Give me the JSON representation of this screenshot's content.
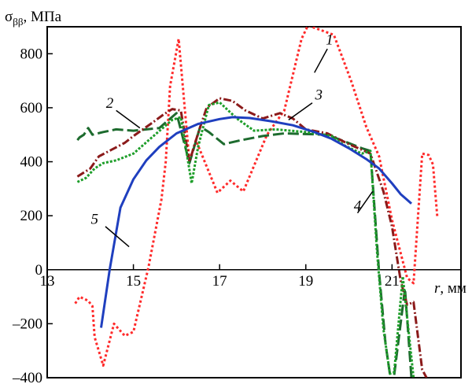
{
  "chart_data": {
    "type": "line",
    "title": "",
    "ylabel": "σ",
    "ylabel_sub": "ββ",
    "ylabel_unit": ", МПа",
    "xlabel": "r",
    "xlabel_unit": ", мм",
    "xlim": [
      13,
      22.6
    ],
    "ylim": [
      -400,
      900
    ],
    "xticks": [
      13,
      15,
      17,
      19,
      21
    ],
    "yticks": [
      -400,
      -200,
      0,
      200,
      400,
      600,
      800
    ],
    "grid": false,
    "legend": "none",
    "series": [
      {
        "label": "1",
        "color": "#ff2a2a",
        "dash": "3,3",
        "label_anchor": [
          19.55,
          835
        ],
        "points": [
          [
            13.65,
            -125
          ],
          [
            13.75,
            -100
          ],
          [
            13.95,
            -115
          ],
          [
            14.05,
            -135
          ],
          [
            14.1,
            -250
          ],
          [
            14.3,
            -355
          ],
          [
            14.55,
            -200
          ],
          [
            14.8,
            -245
          ],
          [
            15.0,
            -230
          ],
          [
            15.35,
            10
          ],
          [
            15.65,
            260
          ],
          [
            15.75,
            400
          ],
          [
            15.85,
            680
          ],
          [
            16.05,
            855
          ],
          [
            16.3,
            400
          ],
          [
            16.45,
            480
          ],
          [
            16.95,
            285
          ],
          [
            17.25,
            330
          ],
          [
            17.55,
            290
          ],
          [
            18.1,
            500
          ],
          [
            18.5,
            590
          ],
          [
            18.9,
            855
          ],
          [
            19.05,
            905
          ],
          [
            19.65,
            870
          ],
          [
            20.05,
            700
          ],
          [
            20.4,
            530
          ],
          [
            20.7,
            420
          ],
          [
            21.0,
            185
          ],
          [
            21.35,
            -30
          ],
          [
            21.5,
            -50
          ],
          [
            21.7,
            430
          ],
          [
            21.85,
            425
          ],
          [
            21.95,
            390
          ],
          [
            22.05,
            195
          ]
        ]
      },
      {
        "label": "2",
        "color": "#1d6b2e",
        "dash": "14,5",
        "label_anchor": [
          14.45,
          600
        ],
        "points": [
          [
            13.7,
            480
          ],
          [
            13.75,
            490
          ],
          [
            13.85,
            500
          ],
          [
            13.95,
            525
          ],
          [
            14.05,
            500
          ],
          [
            14.3,
            510
          ],
          [
            14.6,
            520
          ],
          [
            15.0,
            515
          ],
          [
            15.6,
            525
          ],
          [
            16.0,
            580
          ],
          [
            16.3,
            395
          ],
          [
            16.55,
            530
          ],
          [
            16.75,
            510
          ],
          [
            17.1,
            465
          ],
          [
            17.5,
            480
          ],
          [
            18.0,
            495
          ],
          [
            18.5,
            505
          ],
          [
            19.5,
            500
          ],
          [
            20.3,
            450
          ],
          [
            20.5,
            440
          ],
          [
            20.7,
            -10
          ],
          [
            20.85,
            -275
          ],
          [
            20.95,
            -385
          ],
          [
            21.05,
            -390
          ],
          [
            21.3,
            -70
          ],
          [
            21.45,
            -400
          ]
        ]
      },
      {
        "label": "3",
        "color": "#8b1a1a",
        "dash": "10,3,2,3",
        "label_anchor": [
          19.3,
          630
        ],
        "points": [
          [
            13.7,
            345
          ],
          [
            14.0,
            375
          ],
          [
            14.2,
            420
          ],
          [
            14.5,
            445
          ],
          [
            14.8,
            470
          ],
          [
            15.0,
            495
          ],
          [
            15.4,
            540
          ],
          [
            15.7,
            575
          ],
          [
            15.9,
            595
          ],
          [
            16.1,
            590
          ],
          [
            16.3,
            400
          ],
          [
            16.5,
            505
          ],
          [
            16.7,
            600
          ],
          [
            17.0,
            635
          ],
          [
            17.3,
            625
          ],
          [
            17.6,
            590
          ],
          [
            18.0,
            560
          ],
          [
            18.4,
            580
          ],
          [
            18.7,
            560
          ],
          [
            19.0,
            520
          ],
          [
            19.5,
            505
          ],
          [
            20.0,
            465
          ],
          [
            20.5,
            430
          ],
          [
            20.8,
            290
          ],
          [
            21.0,
            160
          ],
          [
            21.2,
            -40
          ],
          [
            21.35,
            -130
          ],
          [
            21.5,
            -120
          ],
          [
            21.7,
            -370
          ],
          [
            21.8,
            -400
          ]
        ]
      },
      {
        "label": "4",
        "color": "#1e9e2a",
        "dash": "3,2",
        "label_anchor": [
          20.2,
          220
        ],
        "points": [
          [
            13.7,
            325
          ],
          [
            13.9,
            340
          ],
          [
            14.1,
            375
          ],
          [
            14.3,
            395
          ],
          [
            14.6,
            405
          ],
          [
            15.0,
            430
          ],
          [
            15.5,
            500
          ],
          [
            15.9,
            555
          ],
          [
            16.1,
            565
          ],
          [
            16.35,
            320
          ],
          [
            16.5,
            455
          ],
          [
            16.75,
            610
          ],
          [
            17.0,
            620
          ],
          [
            17.4,
            560
          ],
          [
            17.8,
            515
          ],
          [
            18.3,
            520
          ],
          [
            19.0,
            510
          ],
          [
            19.6,
            495
          ],
          [
            19.9,
            460
          ],
          [
            20.3,
            430
          ],
          [
            20.5,
            440
          ],
          [
            20.65,
            70
          ],
          [
            20.8,
            -220
          ],
          [
            20.95,
            -385
          ],
          [
            21.05,
            -380
          ],
          [
            21.25,
            -25
          ],
          [
            21.5,
            -400
          ]
        ]
      },
      {
        "label": "5",
        "color": "#1f3fbf",
        "dash": "",
        "label_anchor": [
          14.1,
          170
        ],
        "points": [
          [
            14.25,
            -215
          ],
          [
            14.45,
            0
          ],
          [
            14.7,
            230
          ],
          [
            15.0,
            335
          ],
          [
            15.3,
            405
          ],
          [
            15.6,
            455
          ],
          [
            16.0,
            505
          ],
          [
            16.5,
            540
          ],
          [
            17.0,
            558
          ],
          [
            17.3,
            565
          ],
          [
            17.7,
            562
          ],
          [
            18.2,
            550
          ],
          [
            18.7,
            535
          ],
          [
            19.2,
            510
          ],
          [
            19.6,
            485
          ],
          [
            20.0,
            450
          ],
          [
            20.4,
            410
          ],
          [
            20.7,
            375
          ],
          [
            21.0,
            320
          ],
          [
            21.2,
            280
          ],
          [
            21.45,
            245
          ]
        ]
      }
    ],
    "leaders": [
      {
        "label": "1",
        "from": [
          19.5,
          818
        ],
        "to": [
          19.2,
          730
        ]
      },
      {
        "label": "2",
        "from": [
          14.6,
          590
        ],
        "to": [
          15.15,
          525
        ]
      },
      {
        "label": "3",
        "from": [
          19.15,
          618
        ],
        "to": [
          18.6,
          555
        ]
      },
      {
        "label": "4",
        "from": [
          20.2,
          210
        ],
        "to": [
          20.55,
          290
        ]
      },
      {
        "label": "5",
        "from": [
          14.35,
          160
        ],
        "to": [
          14.9,
          85
        ]
      }
    ]
  }
}
